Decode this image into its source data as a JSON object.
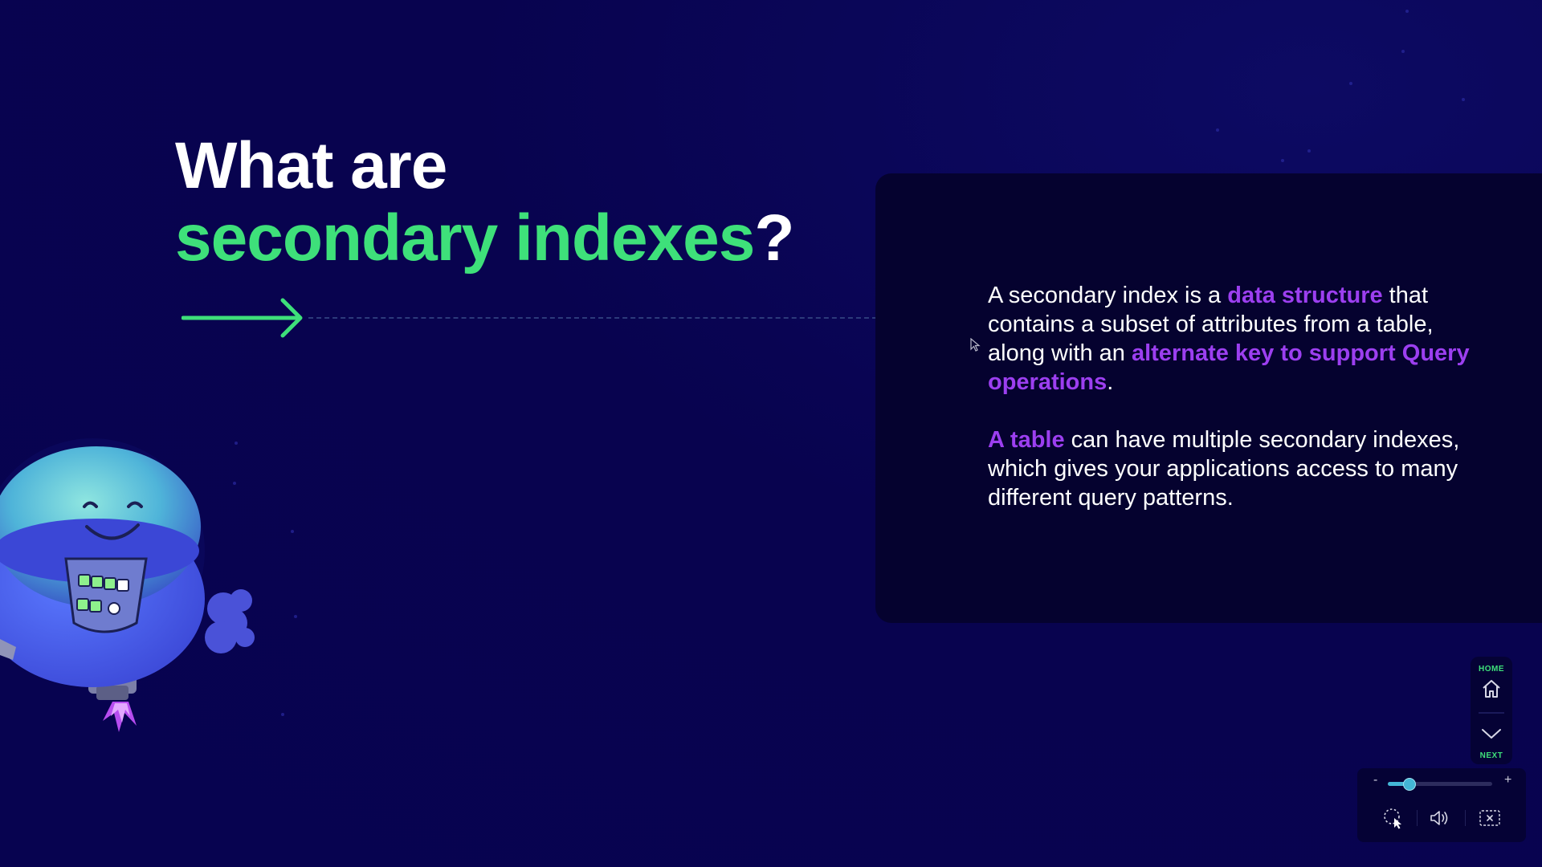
{
  "slide": {
    "title_line1": "What are",
    "title_accent": "secondary indexes",
    "title_mark": "?"
  },
  "panel": {
    "p1_a": "A secondary index is a ",
    "p1_hl1": "data structure",
    "p1_b": " that contains a subset of attributes from a table, along with an ",
    "p1_hl2": "alternate key to support Query operations",
    "p1_c": ".",
    "p2_hl": "A table",
    "p2_a": " can have multiple secondary indexes, which gives your applications access to many different query patterns."
  },
  "nav": {
    "home_label": "HOME",
    "next_label": "NEXT"
  },
  "controls": {
    "zoom_minus": "-",
    "zoom_plus": "+",
    "zoom_level": 0.2
  },
  "icons": {
    "home": "home-icon",
    "next": "chevron-down-icon",
    "pointer": "pointer-icon",
    "audio": "speaker-icon",
    "exit": "close-icon"
  },
  "colors": {
    "background": "#08034f",
    "panel": "#05022f",
    "accent_green": "#3ee07a",
    "accent_purple": "#9c3ff0",
    "slider": "#43b6d6"
  }
}
